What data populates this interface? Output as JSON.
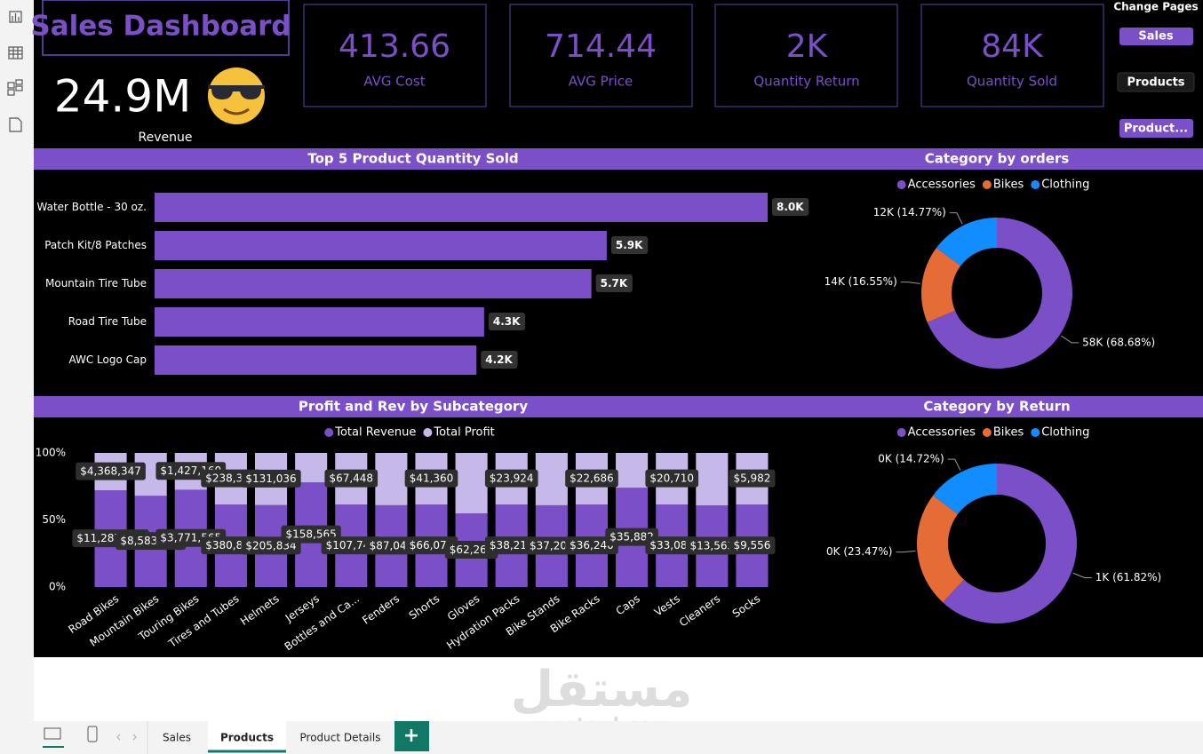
{
  "header": {
    "title": "Sales Dashboard"
  },
  "revenue": {
    "value": "24.9M",
    "label": "Revenue"
  },
  "kpis": [
    {
      "value": "413.66",
      "label": "AVG Cost"
    },
    {
      "value": "714.44",
      "label": "AVG Price"
    },
    {
      "value": "2K",
      "label": "Quantity Return"
    },
    {
      "value": "84K",
      "label": "Quantity Sold"
    }
  ],
  "nav": {
    "title": "Change Pages",
    "buttons": [
      "Sales",
      "Products",
      "Product..."
    ]
  },
  "tabs": {
    "pages": [
      "Sales",
      "Products",
      "Product Details"
    ],
    "add": "+"
  },
  "watermark": {
    "arabic": "مستقل",
    "latin": "mostaql.com"
  },
  "chart_data": [
    {
      "type": "bar",
      "title": "Top 5 Product Quantity Sold",
      "categories": [
        "Water Bottle - 30 oz.",
        "Patch Kit/8 Patches",
        "Mountain Tire Tube",
        "Road Tire Tube",
        "AWC Logo Cap"
      ],
      "values": [
        8000,
        5900,
        5700,
        4300,
        4200
      ],
      "value_labels": [
        "8.0K",
        "5.9K",
        "5.7K",
        "4.3K",
        "4.2K"
      ],
      "color": "#7b4fc7"
    },
    {
      "type": "donut",
      "title": "Category by orders",
      "categories": [
        "Accessories",
        "Bikes",
        "Clothing"
      ],
      "colors": [
        "#7b4fc7",
        "#e66c37",
        "#118dff"
      ],
      "values": [
        68.68,
        16.55,
        14.77
      ],
      "value_labels": [
        "58K (68.68%)",
        "14K (16.55%)",
        "12K (14.77%)"
      ]
    },
    {
      "type": "stacked_bar_100",
      "title": "Profit and Rev by Subcategory",
      "categories": [
        "Road Bikes",
        "Mountain Bikes",
        "Touring Bikes",
        "Tires and Tubes",
        "Helmets",
        "Jerseys",
        "Bottles and Ca...",
        "Fenders",
        "Shorts",
        "Gloves",
        "Hydration Packs",
        "Bike Stands",
        "Bike Racks",
        "Caps",
        "Vests",
        "Cleaners",
        "Socks"
      ],
      "series": [
        {
          "name": "Total Revenue",
          "color": "#7b4fc7",
          "values": [
            11287183,
            8583748,
            3771565,
            380827,
            205834,
            158565,
            107745,
            87041,
            66071,
            62261,
            38218,
            37206,
            36240,
            35882,
            33084,
            13563,
            9556
          ],
          "value_labels": [
            "$11,287,183",
            "$8,583,748",
            "$3,771,565",
            "$380,827",
            "$205,834",
            "$158,565",
            "$107,745",
            "$87,041",
            "$66,071",
            "$62,261",
            "$38,218",
            "$37,206",
            "$36,240",
            "$35,882",
            "$33,084",
            "$13,563",
            "$9,556"
          ]
        },
        {
          "name": "Total Profit",
          "color": "#c7b8ea",
          "values": [
            4368347,
            4039000,
            1427160,
            238396,
            131036,
            44700,
            67448,
            55600,
            41360,
            51100,
            23924,
            23800,
            22686,
            12600,
            20710,
            8700,
            5982
          ],
          "value_labels": [
            "$4,368,347",
            null,
            "$1,427,160",
            "$238,396",
            "$131,036",
            null,
            "$67,448",
            null,
            "$41,360",
            null,
            "$23,924",
            null,
            "$22,686",
            null,
            "$20,710",
            null,
            "$5,982"
          ]
        }
      ],
      "ylim": [
        0,
        100
      ],
      "yticks": [
        {
          "value": 0,
          "label": "0%"
        },
        {
          "value": 50,
          "label": "50%"
        },
        {
          "value": 100,
          "label": "100%"
        }
      ]
    },
    {
      "type": "donut",
      "title": "Category by Return",
      "categories": [
        "Accessories",
        "Bikes",
        "Clothing"
      ],
      "colors": [
        "#7b4fc7",
        "#e66c37",
        "#118dff"
      ],
      "values": [
        61.82,
        23.47,
        14.72
      ],
      "value_labels": [
        "1K (61.82%)",
        "0K (23.47%)",
        "0K (14.72%)"
      ]
    }
  ]
}
